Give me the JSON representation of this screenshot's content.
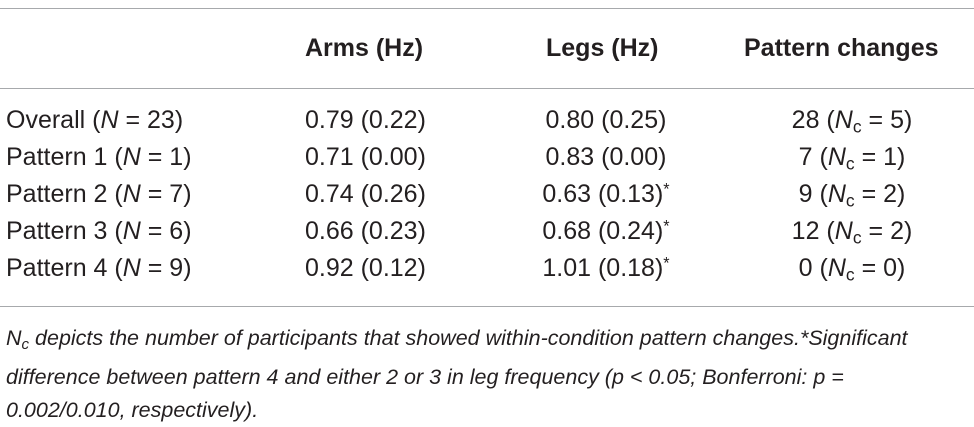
{
  "table": {
    "headers": {
      "col0": "",
      "arms": "Arms (Hz)",
      "legs": "Legs (Hz)",
      "pattern_changes": "Pattern changes"
    },
    "rows": [
      {
        "label": "Overall",
        "n_sym": "N",
        "n_val": " = 23)",
        "arms": "0.79 (0.22)",
        "legs": "0.80 (0.25)",
        "legs_mark": "",
        "pc_count": "28",
        "pc_n": " = 5)"
      },
      {
        "label": "Pattern 1",
        "n_sym": "N",
        "n_val": " = 1)",
        "arms": "0.71 (0.00)",
        "legs": "0.83 (0.00)",
        "legs_mark": "",
        "pc_count": "7",
        "pc_n": " = 1)"
      },
      {
        "label": "Pattern 2",
        "n_sym": "N",
        "n_val": " = 7)",
        "arms": "0.74 (0.26)",
        "legs": "0.63 (0.13)",
        "legs_mark": "*",
        "pc_count": "9",
        "pc_n": " = 2)"
      },
      {
        "label": "Pattern 3",
        "n_sym": "N",
        "n_val": " = 6)",
        "arms": "0.66 (0.23)",
        "legs": "0.68 (0.24)",
        "legs_mark": "*",
        "pc_count": "12",
        "pc_n": " = 2)"
      },
      {
        "label": "Pattern 4",
        "n_sym": "N",
        "n_val": " = 9)",
        "arms": "0.92 (0.12)",
        "legs": "1.01 (0.18)",
        "legs_mark": "*",
        "pc_count": "0",
        "pc_n": " = 0)"
      }
    ]
  },
  "footnote": {
    "symbol": "N",
    "subscript": "c",
    "text": " depicts the number of participants that showed within-condition pattern changes.",
    "sig_mark": "*",
    "sig_text": "Significant difference between pattern 4 and either 2 or 3 in leg frequency (p < 0.05; Bonferroni: p = 0.002/0.010, respectively)."
  }
}
